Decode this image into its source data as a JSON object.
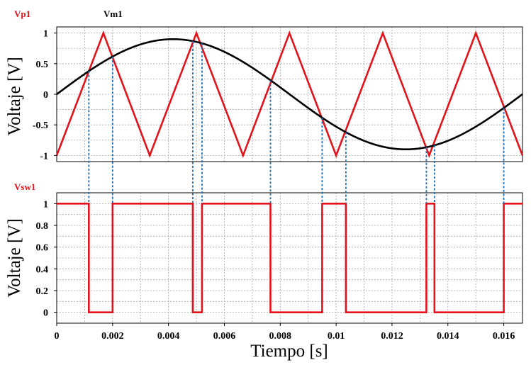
{
  "chart_data": [
    {
      "type": "line",
      "legend": [
        {
          "name": "Vp1",
          "color": "#e3131b"
        },
        {
          "name": "Vm1",
          "color": "#000000"
        }
      ],
      "ylabel": "Voltaje [V]",
      "xlim": [
        0,
        0.01667
      ],
      "ylim": [
        -1.1,
        1.1
      ],
      "grid": true,
      "yticks": [
        -1,
        -0.5,
        0,
        0.5,
        1
      ],
      "ytick_labels": [
        "-1",
        "-0.5",
        "0",
        "0.5",
        "1"
      ],
      "series": [
        {
          "name": "Vp1",
          "color": "#e3131b",
          "x": [
            0,
            0.00167,
            0.00333,
            0.005,
            0.00667,
            0.00833,
            0.01,
            0.01167,
            0.01333,
            0.015,
            0.01667
          ],
          "y": [
            -1,
            1,
            -1,
            1,
            -1,
            1,
            -1,
            1,
            -1,
            1,
            -1
          ]
        },
        {
          "name": "Vm1",
          "color": "#000000",
          "function": "0.9*sin(2*pi*60*t)",
          "amplitude": 0.9,
          "frequency_hz": 60
        }
      ],
      "crossings_x": [
        0.00115,
        0.002,
        0.00487,
        0.0052,
        0.00765,
        0.0095,
        0.01035,
        0.01323,
        0.01352,
        0.016
      ]
    },
    {
      "type": "line",
      "legend": [
        {
          "name": "Vsw1",
          "color": "#e3131b"
        }
      ],
      "ylabel": "Voltaje [V]",
      "xlabel": "Tiempo [s]",
      "xlim": [
        0,
        0.01667
      ],
      "ylim": [
        -0.1,
        1.1
      ],
      "grid": true,
      "yticks": [
        0,
        0.2,
        0.4,
        0.6,
        0.8,
        1
      ],
      "ytick_labels": [
        "0",
        "0.2",
        "0.4",
        "0.6",
        "0.8",
        "1"
      ],
      "xticks": [
        0,
        0.002,
        0.004,
        0.006,
        0.008,
        0.01,
        0.012,
        0.014,
        0.016
      ],
      "xtick_labels": [
        "0",
        "0.002",
        "0.004",
        "0.006",
        "0.008",
        "0.01",
        "0.012",
        "0.014",
        "0.016"
      ],
      "series": [
        {
          "name": "Vsw1",
          "color": "#e3131b",
          "step_x": [
            0,
            0.00115,
            0.002,
            0.00487,
            0.0052,
            0.00765,
            0.0095,
            0.01035,
            0.01323,
            0.01352,
            0.016,
            0.01667
          ],
          "step_y": [
            1,
            0,
            1,
            0,
            1,
            0,
            1,
            0,
            1,
            0,
            1
          ]
        }
      ]
    }
  ]
}
